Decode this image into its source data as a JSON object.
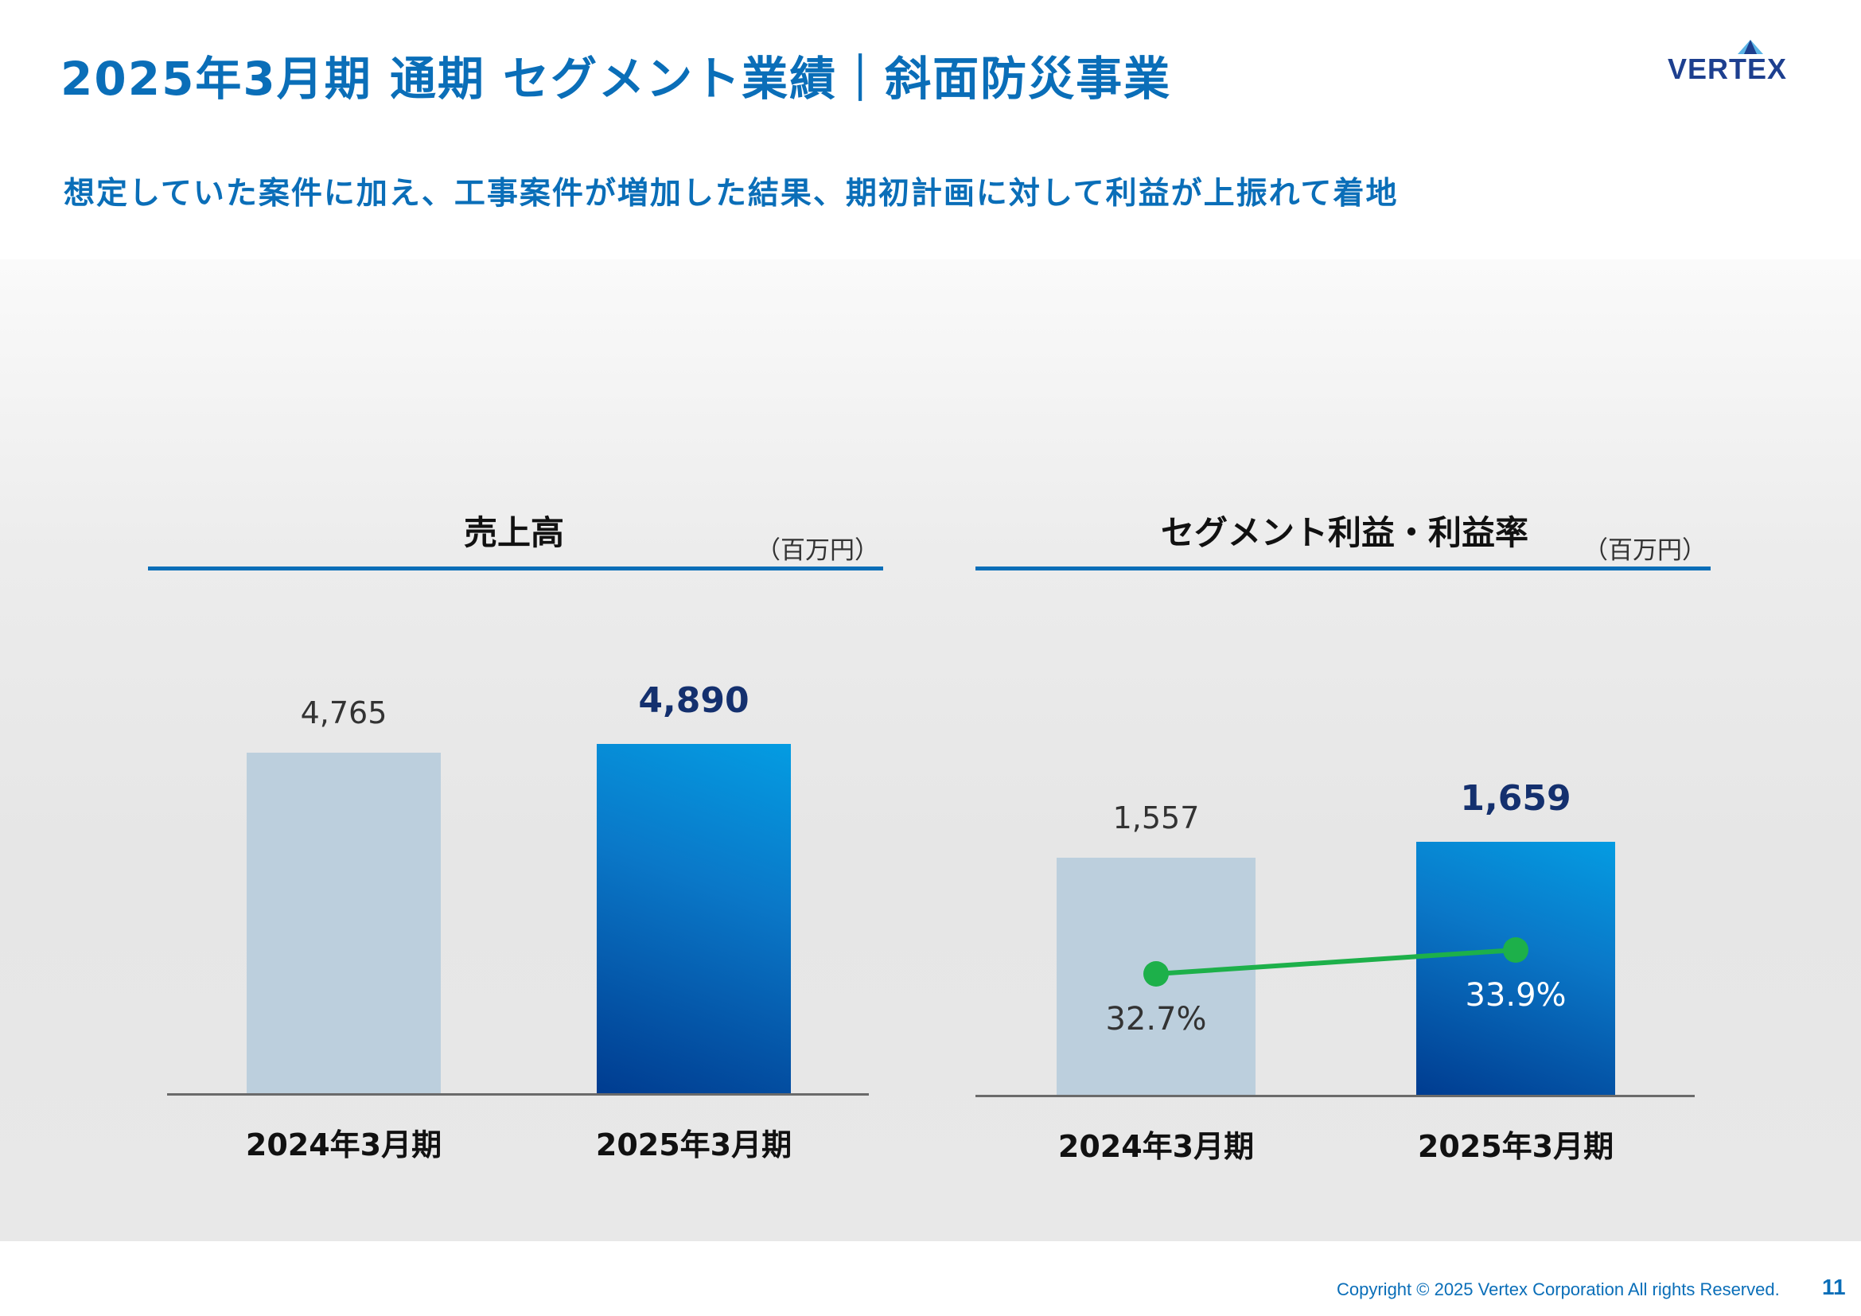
{
  "header": {
    "title": "2025年3月期 通期 セグメント業績｜斜面防災事業",
    "logo_text": "VERTEX"
  },
  "headline": "想定していた案件に加え、工事案件が増加した結果、期初計画に対して利益が上振れて着地",
  "colors": {
    "accent": "#0a6eb8",
    "prev_bar": "#bccfdd",
    "curr_bar_light": "#049ce2",
    "curr_bar_dark": "#003c90",
    "rate_line": "#1db04a",
    "strong_value": "#14306e"
  },
  "chart_data": [
    {
      "type": "bar",
      "title": "売上高",
      "unit": "（百万円）",
      "categories": [
        "2024年3月期",
        "2025年3月期"
      ],
      "values": [
        4765,
        4890
      ],
      "value_labels": [
        "4,765",
        "4,890"
      ]
    },
    {
      "type": "bar",
      "title": "セグメント利益・利益率",
      "unit": "（百万円）",
      "categories": [
        "2024年3月期",
        "2025年3月期"
      ],
      "values": [
        1557,
        1659
      ],
      "value_labels": [
        "1,557",
        "1,659"
      ],
      "line_values": [
        32.7,
        33.9
      ],
      "line_labels": [
        "32.7%",
        "33.9%"
      ]
    }
  ],
  "footer": {
    "copyright": "Copyright © 2025 Vertex Corporation All rights Reserved.",
    "page": "11"
  }
}
